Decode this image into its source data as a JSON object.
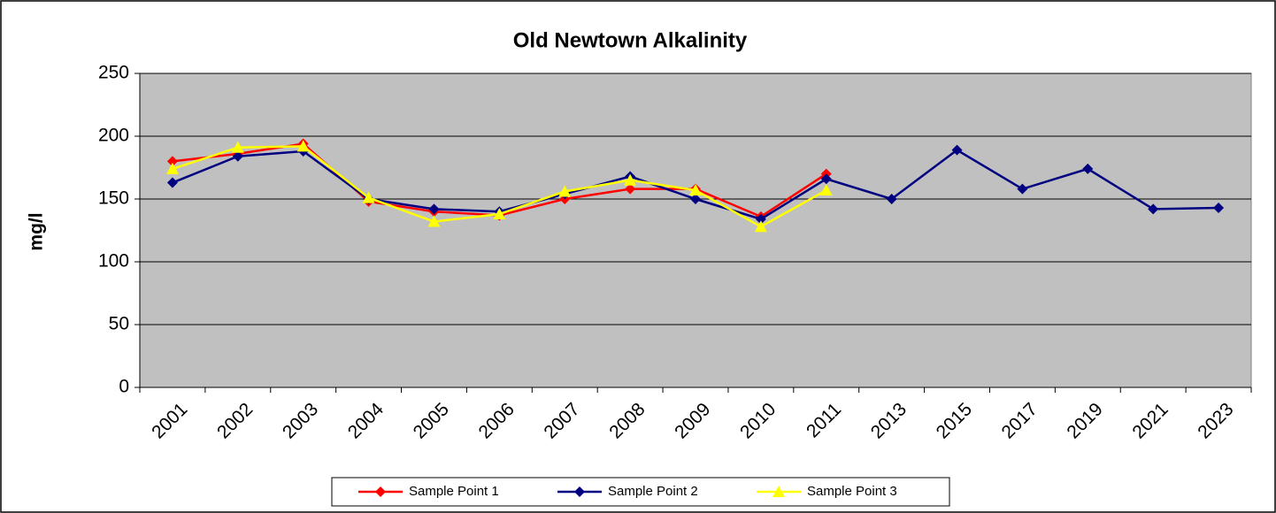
{
  "chart_data": {
    "type": "line",
    "title": "Old Newtown Alkalinity",
    "y_label": "mg/l",
    "categories": [
      "2001",
      "2002",
      "2003",
      "2004",
      "2005",
      "2006",
      "2007",
      "2008",
      "2009",
      "2010",
      "2011",
      "2013",
      "2015",
      "2017",
      "2019",
      "2021",
      "2023"
    ],
    "series": [
      {
        "name": "Sample Point 1",
        "color": "#ff0000",
        "marker": "diamond",
        "values": [
          180,
          186,
          194,
          148,
          140,
          137,
          150,
          158,
          158,
          136,
          170,
          null,
          null,
          null,
          null,
          null,
          null
        ]
      },
      {
        "name": "Sample Point 2",
        "color": "#000080",
        "marker": "diamond",
        "values": [
          163,
          184,
          188,
          150,
          142,
          140,
          154,
          168,
          150,
          134,
          166,
          150,
          189,
          158,
          174,
          142,
          143
        ]
      },
      {
        "name": "Sample Point 3",
        "color": "#ffff00",
        "marker": "triangle",
        "values": [
          174,
          191,
          192,
          151,
          132,
          138,
          156,
          165,
          157,
          128,
          157,
          null,
          null,
          null,
          null,
          null,
          null
        ]
      }
    ],
    "ylim": [
      0,
      250
    ],
    "yticks": [
      0,
      50,
      100,
      150,
      200,
      250
    ],
    "grid": true,
    "legend": "bottom"
  }
}
